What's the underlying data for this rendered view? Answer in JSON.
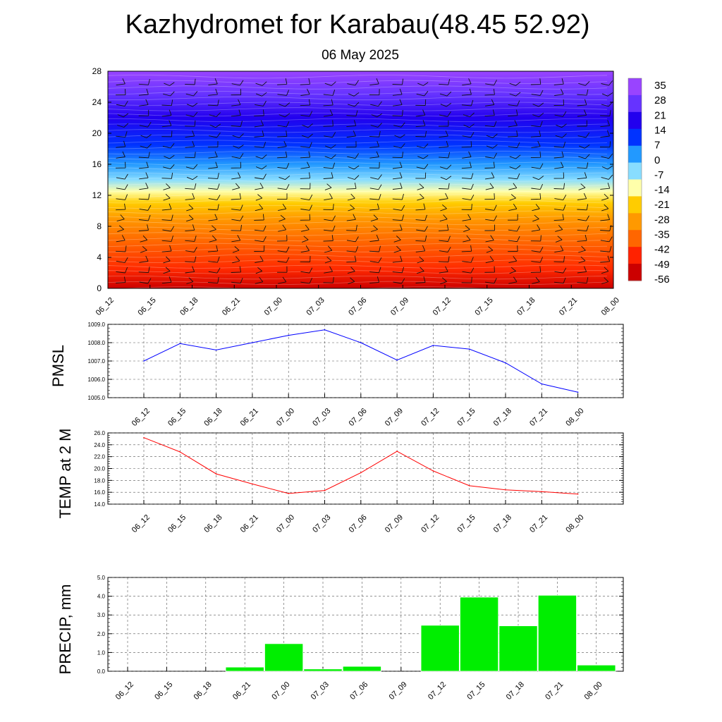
{
  "title": "Kazhydromet for Karabau(48.45 52.92)",
  "subtitle": "06 May 2025",
  "time_labels": [
    "06_12",
    "06_15",
    "06_18",
    "06_21",
    "07_00",
    "07_03",
    "07_06",
    "07_09",
    "07_12",
    "07_15",
    "07_18",
    "07_21",
    "08_00"
  ],
  "chart_data": [
    {
      "type": "heatmap",
      "name": "cross-section",
      "ylim": [
        0,
        28
      ],
      "y_ticks": [
        0,
        4,
        8,
        12,
        16,
        20,
        24,
        28
      ],
      "colorbar_labels": [
        "35",
        "28",
        "21",
        "14",
        "7",
        "0",
        "-7",
        "-14",
        "-21",
        "-28",
        "-35",
        "-42",
        "-49",
        "-56"
      ],
      "colors": [
        "#cc0000",
        "#ff2200",
        "#ff6600",
        "#ff9900",
        "#ffcc00",
        "#ffffaa",
        "#88ddff",
        "#2299ff",
        "#0033ff",
        "#2200ee",
        "#6633ff",
        "#9944ff"
      ],
      "color_profile": [
        {
          "y": 0,
          "color": "#cc0000"
        },
        {
          "y": 2.5,
          "color": "#ff2a00"
        },
        {
          "y": 6,
          "color": "#ff6600"
        },
        {
          "y": 9,
          "color": "#ff9900"
        },
        {
          "y": 11,
          "color": "#ffcc00"
        },
        {
          "y": 12.5,
          "color": "#ffffaa"
        },
        {
          "y": 14,
          "color": "#88ddff"
        },
        {
          "y": 16,
          "color": "#2299ff"
        },
        {
          "y": 18.5,
          "color": "#0033ff"
        },
        {
          "y": 22,
          "color": "#2200ee"
        },
        {
          "y": 25,
          "color": "#6633ff"
        },
        {
          "y": 28,
          "color": "#9944ff"
        }
      ]
    },
    {
      "type": "line",
      "ylabel": "PMSL",
      "ylim": [
        1005.0,
        1009.0
      ],
      "y_ticks": [
        "1005.0",
        "1006.0",
        "1007.0",
        "1008.0",
        "1009.0"
      ],
      "color": "#0000ff",
      "values": [
        1007.0,
        1007.95,
        1007.6,
        1008.0,
        1008.4,
        1008.7,
        1008.0,
        1007.05,
        1007.85,
        1007.65,
        1006.9,
        1005.75,
        1005.3
      ]
    },
    {
      "type": "line",
      "ylabel": "TEMP at 2 M",
      "ylim": [
        14.0,
        26.0
      ],
      "y_ticks": [
        "14.0",
        "16.0",
        "18.0",
        "20.0",
        "22.0",
        "24.0",
        "26.0"
      ],
      "color": "#ff0000",
      "values": [
        25.2,
        22.8,
        19.1,
        17.4,
        15.8,
        16.3,
        19.3,
        22.9,
        19.6,
        17.1,
        16.4,
        16.1,
        15.7
      ]
    },
    {
      "type": "bar",
      "ylabel": "PRECIP, mm",
      "ylim": [
        0.0,
        5.0
      ],
      "y_ticks": [
        "0.0",
        "1.0",
        "2.0",
        "3.0",
        "4.0",
        "5.0"
      ],
      "color": "#00ee00",
      "values": [
        0,
        0,
        0,
        0.22,
        1.47,
        0.12,
        0.26,
        0,
        2.45,
        3.95,
        2.42,
        4.05,
        0.33
      ]
    }
  ]
}
